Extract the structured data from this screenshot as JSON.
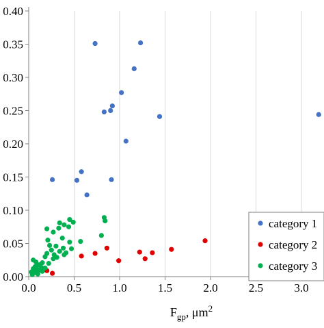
{
  "chart_data": {
    "type": "scatter",
    "title": "",
    "xlabel_main": "F",
    "xlabel_sub": "gp",
    "xlabel_unit": ", μm",
    "xlabel_sup": "2",
    "ylabel": "",
    "xlim": [
      0,
      3.5
    ],
    "ylim": [
      0,
      0.4
    ],
    "x_ticks": [
      {
        "value": 0,
        "label": "0.0"
      },
      {
        "value": 0.5,
        "label": "0.5"
      },
      {
        "value": 1.0,
        "label": "1.0"
      },
      {
        "value": 1.5,
        "label": "1.5"
      },
      {
        "value": 2.0,
        "label": "2.0"
      },
      {
        "value": 2.5,
        "label": "2.5"
      },
      {
        "value": 3.0,
        "label": "3.0"
      },
      {
        "value": 3.5,
        "label": "3.5"
      }
    ],
    "y_ticks": [
      {
        "value": 0.0,
        "label": "0.00"
      },
      {
        "value": 0.05,
        "label": "0.05"
      },
      {
        "value": 0.1,
        "label": "0.10"
      },
      {
        "value": 0.15,
        "label": "0.15"
      },
      {
        "value": 0.2,
        "label": "0.20"
      },
      {
        "value": 0.25,
        "label": "0.25"
      },
      {
        "value": 0.3,
        "label": "0.30"
      },
      {
        "value": 0.35,
        "label": "0.35"
      },
      {
        "value": 0.4,
        "label": "0.40"
      }
    ],
    "grid": "vertical-major",
    "legend_position": "bottom-right",
    "series": [
      {
        "name": "category 1",
        "color": "#4472c4",
        "points": [
          [
            0.73,
            0.351
          ],
          [
            1.23,
            0.352
          ],
          [
            1.16,
            0.313
          ],
          [
            1.02,
            0.277
          ],
          [
            0.92,
            0.257
          ],
          [
            0.9,
            0.25
          ],
          [
            0.83,
            0.248
          ],
          [
            1.44,
            0.241
          ],
          [
            3.19,
            0.244
          ],
          [
            1.07,
            0.204
          ],
          [
            0.58,
            0.158
          ],
          [
            0.26,
            0.146
          ],
          [
            0.53,
            0.145
          ],
          [
            0.91,
            0.146
          ],
          [
            0.64,
            0.123
          ]
        ]
      },
      {
        "name": "category 2",
        "color": "#e00000",
        "points": [
          [
            1.94,
            0.054
          ],
          [
            0.86,
            0.043
          ],
          [
            1.57,
            0.041
          ],
          [
            1.22,
            0.037
          ],
          [
            1.36,
            0.036
          ],
          [
            0.73,
            0.035
          ],
          [
            0.58,
            0.031
          ],
          [
            1.28,
            0.027
          ],
          [
            0.99,
            0.024
          ],
          [
            0.2,
            0.009
          ],
          [
            0.26,
            0.005
          ]
        ]
      },
      {
        "name": "category 3",
        "color": "#00b050",
        "points": [
          [
            0.83,
            0.089
          ],
          [
            0.84,
            0.084
          ],
          [
            0.45,
            0.086
          ],
          [
            0.49,
            0.082
          ],
          [
            0.34,
            0.081
          ],
          [
            0.39,
            0.078
          ],
          [
            0.44,
            0.075
          ],
          [
            0.33,
            0.073
          ],
          [
            0.2,
            0.072
          ],
          [
            0.27,
            0.067
          ],
          [
            0.8,
            0.062
          ],
          [
            0.37,
            0.058
          ],
          [
            0.21,
            0.055
          ],
          [
            0.57,
            0.053
          ],
          [
            0.45,
            0.052
          ],
          [
            0.23,
            0.047
          ],
          [
            0.3,
            0.046
          ],
          [
            0.38,
            0.043
          ],
          [
            0.47,
            0.042
          ],
          [
            0.25,
            0.04
          ],
          [
            0.34,
            0.038
          ],
          [
            0.41,
            0.036
          ],
          [
            0.2,
            0.035
          ],
          [
            0.28,
            0.033
          ],
          [
            0.39,
            0.033
          ],
          [
            0.18,
            0.03
          ],
          [
            0.31,
            0.029
          ],
          [
            0.27,
            0.027
          ],
          [
            0.05,
            0.025
          ],
          [
            0.08,
            0.022
          ],
          [
            0.15,
            0.021
          ],
          [
            0.22,
            0.02
          ],
          [
            0.12,
            0.018
          ],
          [
            0.1,
            0.017
          ],
          [
            0.07,
            0.015
          ],
          [
            0.14,
            0.014
          ],
          [
            0.18,
            0.013
          ],
          [
            0.05,
            0.012
          ],
          [
            0.09,
            0.011
          ],
          [
            0.12,
            0.01
          ],
          [
            0.06,
            0.009
          ],
          [
            0.15,
            0.008
          ],
          [
            0.03,
            0.007
          ],
          [
            0.08,
            0.006
          ],
          [
            0.05,
            0.005
          ],
          [
            0.1,
            0.004
          ],
          [
            0.04,
            0.003
          ]
        ]
      }
    ]
  }
}
